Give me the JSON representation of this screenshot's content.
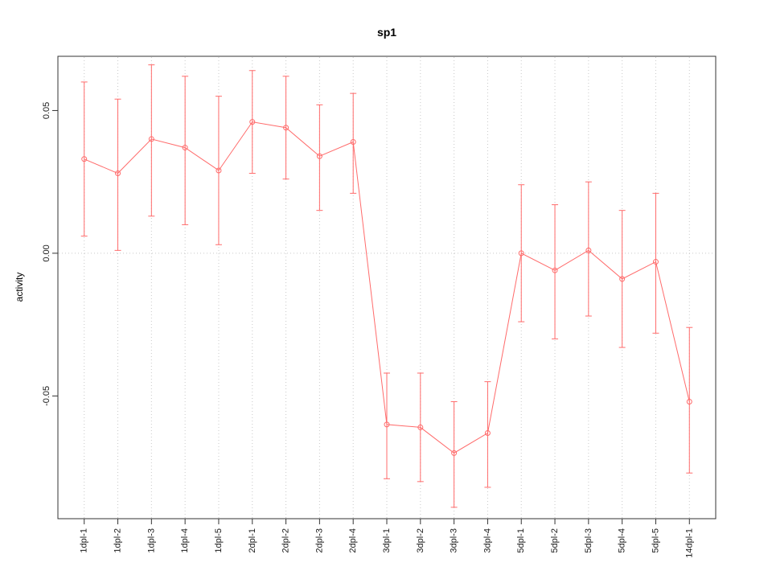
{
  "chart_data": {
    "type": "line",
    "title": "sp1",
    "xlabel": "",
    "ylabel": "activity",
    "categories": [
      "1dpl-1",
      "1dpl-2",
      "1dpl-3",
      "1dpl-4",
      "1dpl-5",
      "2dpl-1",
      "2dpl-2",
      "2dpl-3",
      "2dpl-4",
      "3dpl-1",
      "3dpl-2",
      "3dpl-3",
      "3dpl-4",
      "5dpl-1",
      "5dpl-2",
      "5dpl-3",
      "5dpl-4",
      "5dpl-5",
      "14dpl-1"
    ],
    "series": [
      {
        "name": "activity",
        "values": [
          0.033,
          0.028,
          0.04,
          0.037,
          0.029,
          0.046,
          0.044,
          0.034,
          0.039,
          -0.06,
          -0.061,
          -0.07,
          -0.063,
          0.0,
          -0.006,
          0.001,
          -0.009,
          -0.003,
          -0.052
        ],
        "error_low": [
          0.006,
          0.001,
          0.013,
          0.01,
          0.003,
          0.028,
          0.026,
          0.015,
          0.021,
          -0.079,
          -0.08,
          -0.089,
          -0.082,
          -0.024,
          -0.03,
          -0.022,
          -0.033,
          -0.028,
          -0.077
        ],
        "error_high": [
          0.06,
          0.054,
          0.066,
          0.062,
          0.055,
          0.064,
          0.062,
          0.052,
          0.056,
          -0.042,
          -0.042,
          -0.052,
          -0.045,
          0.024,
          0.017,
          0.025,
          0.015,
          0.021,
          -0.026
        ]
      }
    ],
    "ylim": [
      -0.093,
      0.069
    ],
    "yticks": [
      -0.05,
      0.0,
      0.05
    ],
    "h_gridlines": [
      0
    ],
    "grid": true,
    "legend_position": "none",
    "point_style": "open-circle",
    "colors": {
      "series": "#ff6b6b",
      "axis": "#333333",
      "tick_text": "#1a1a1a",
      "grid": "#c9c9c9",
      "background": "#ffffff"
    }
  }
}
